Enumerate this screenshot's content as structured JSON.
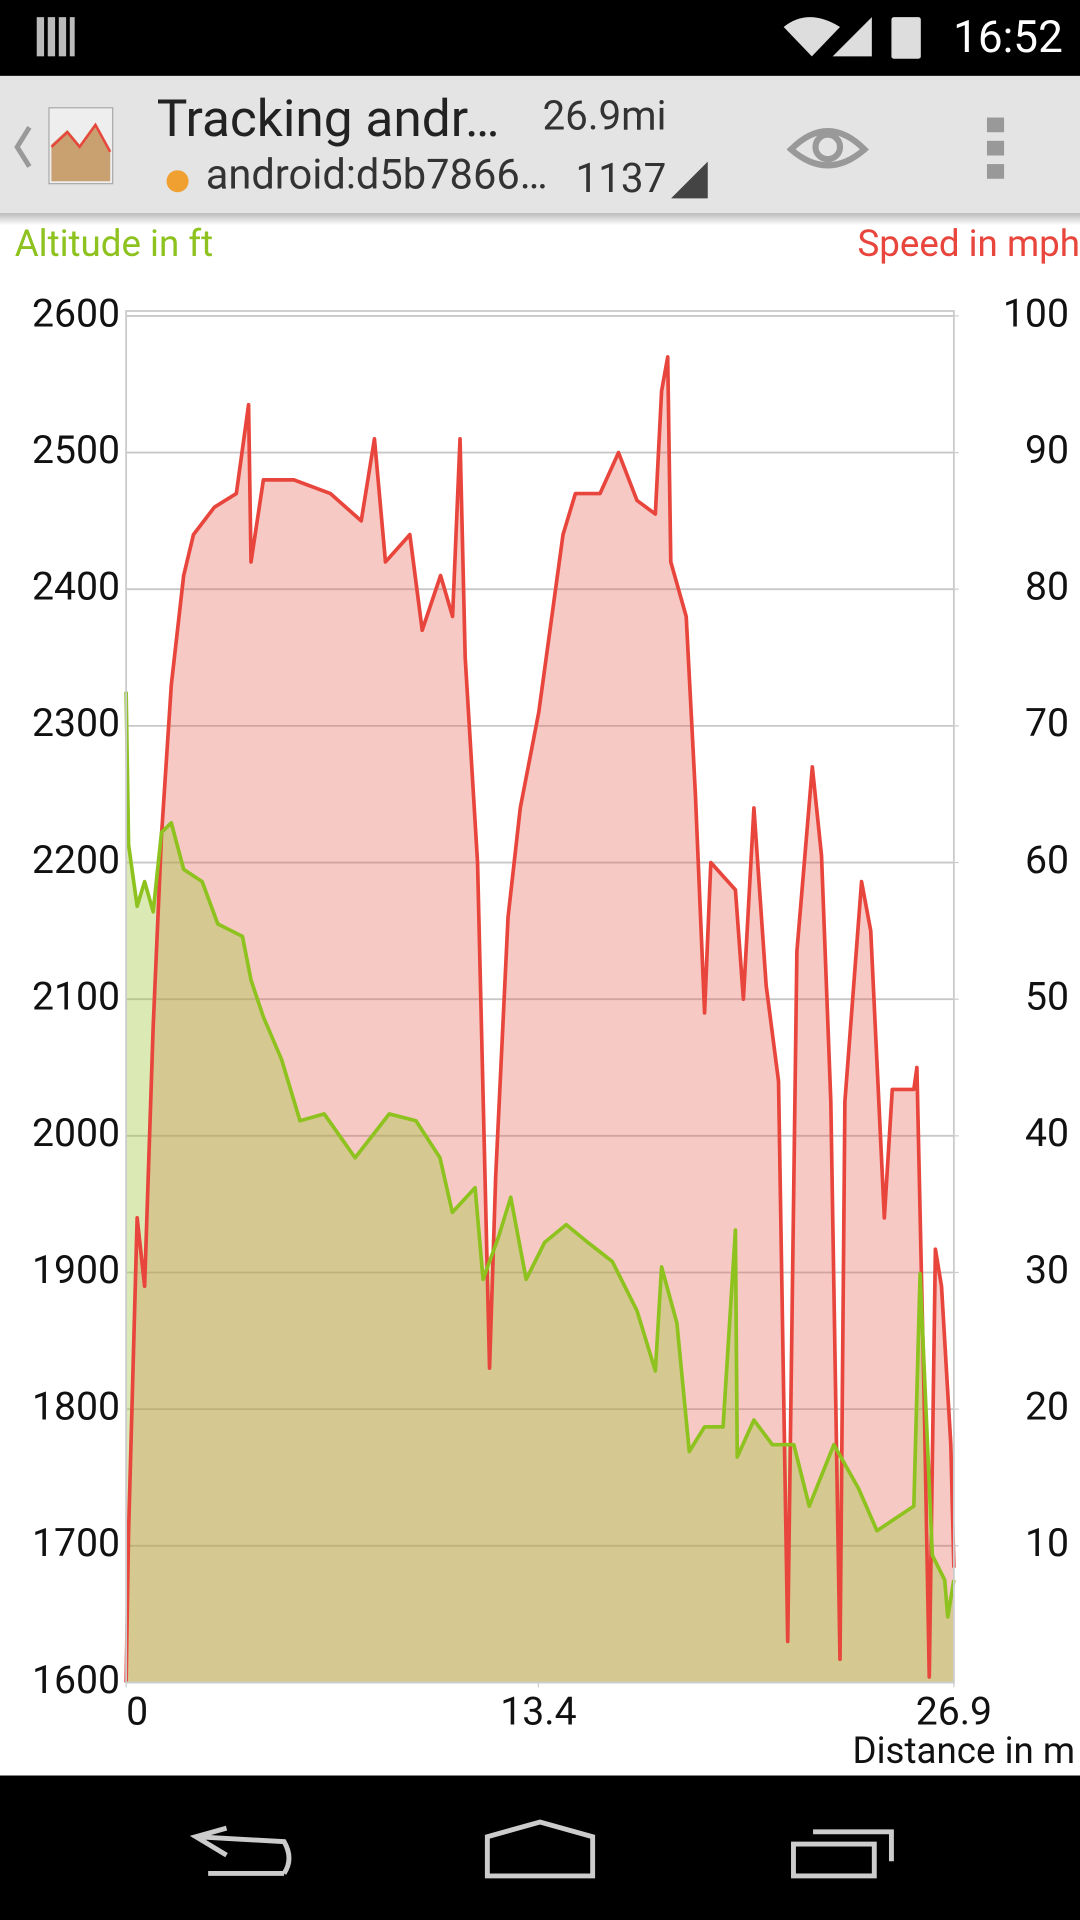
{
  "status_bar": {
    "time": "16:52"
  },
  "action_bar": {
    "title": "Tracking andr…",
    "subtitle": "android:d5b7866…",
    "distance": "26.9mi",
    "points": "1137"
  },
  "chart_data": {
    "type": "line",
    "y_label": "Altitude in ft",
    "y2_label": "Speed in mph",
    "x_label": "Distance in m",
    "xlim": [
      0,
      26.9
    ],
    "xticks": [
      0,
      13.4,
      26.9
    ],
    "ylim": [
      1600,
      2600
    ],
    "yticks": [
      1600,
      1700,
      1800,
      1900,
      2000,
      2100,
      2200,
      2300,
      2400,
      2500,
      2600
    ],
    "y2lim": [
      0,
      100
    ],
    "y2ticks": [
      10,
      20,
      30,
      40,
      50,
      60,
      70,
      80,
      90,
      100
    ],
    "grid": true,
    "series": [
      {
        "color": "#8dc21f",
        "fill": true,
        "x": [
          0,
          0.08,
          0.36,
          0.6,
          0.88,
          1.15,
          1.47,
          1.87,
          2.47,
          2.98,
          3.78,
          4.06,
          4.46,
          5.05,
          5.65,
          6.44,
          7.44,
          8.55,
          9.42,
          10.2,
          10.6,
          11.34,
          11.6,
          12.1,
          12.5,
          13.0,
          13.6,
          14.3,
          15.0,
          15.8,
          16.6,
          17.2,
          17.4,
          17.9,
          18.3,
          18.8,
          19.4,
          19.8,
          19.86,
          20.4,
          21.0,
          21.7,
          22.2,
          23.0,
          23.8,
          24.4,
          25.6,
          25.8,
          26.2,
          26.6,
          26.7,
          26.9
        ],
        "values": [
          2325,
          2213,
          2168,
          2186,
          2164,
          2222,
          2229,
          2195,
          2186,
          2155,
          2146,
          2114,
          2087,
          2056,
          2011,
          2016,
          1984,
          2016,
          2011,
          1984,
          1944,
          1962,
          1895,
          1926,
          1955,
          1895,
          1922,
          1935,
          1922,
          1908,
          1872,
          1828,
          1904,
          1863,
          1769,
          1787,
          1787,
          1931,
          1765,
          1792,
          1774,
          1774,
          1729,
          1774,
          1742,
          1711,
          1729,
          1899,
          1693,
          1675,
          1648,
          1675
        ]
      },
      {
        "color": "#e8453c",
        "fill": true,
        "axis": "y2",
        "x": [
          0,
          0.08,
          0.36,
          0.6,
          0.88,
          1.15,
          1.47,
          1.87,
          2.19,
          2.87,
          3.58,
          3.98,
          4.06,
          4.46,
          5.45,
          6.64,
          7.64,
          8.07,
          8.43,
          9.22,
          9.62,
          10.22,
          10.61,
          10.85,
          11.02,
          11.42,
          11.81,
          12.01,
          12.41,
          12.81,
          13.41,
          14.2,
          14.6,
          15.4,
          16.0,
          16.6,
          17.2,
          17.4,
          17.6,
          17.7,
          18.2,
          18.5,
          18.8,
          19.0,
          19.8,
          20.06,
          20.4,
          20.8,
          21.2,
          21.5,
          21.8,
          22.3,
          22.6,
          22.9,
          23.2,
          23.36,
          23.9,
          24.2,
          24.64,
          24.9,
          25.6,
          25.7,
          25.94,
          26.1,
          26.3,
          26.5,
          26.8,
          26.9
        ],
        "values": [
          0,
          11,
          34,
          29,
          48,
          62,
          73,
          81,
          84,
          86,
          87,
          93.5,
          82,
          88,
          88,
          87,
          85,
          91,
          82,
          84,
          77,
          81,
          78,
          91,
          75,
          60,
          23,
          37,
          56,
          64,
          71,
          84,
          87,
          87,
          90,
          86.5,
          85.5,
          94.5,
          97,
          82,
          78,
          65,
          49,
          60,
          58,
          50,
          64,
          51,
          44,
          3,
          53.5,
          67,
          60.5,
          42.5,
          1.7,
          42.5,
          58.6,
          55,
          34,
          43.4,
          43.4,
          45,
          20,
          0.4,
          31.7,
          29,
          17.4,
          8.4
        ]
      }
    ]
  }
}
